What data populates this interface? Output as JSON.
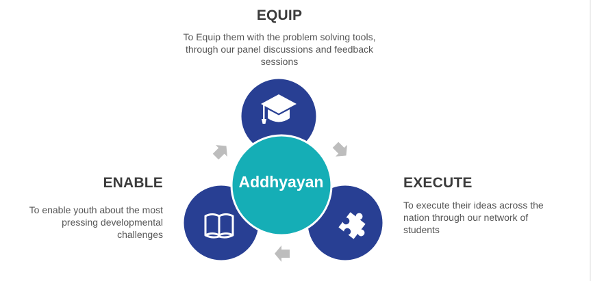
{
  "center": {
    "label": "Addhyayan"
  },
  "equip": {
    "heading": "EQUIP",
    "desc": "To Equip them with the problem solving tools, through our panel discussions and feedback sessions",
    "icon": "graduation-cap-icon"
  },
  "enable": {
    "heading": "ENABLE",
    "desc": "To enable youth about the most pressing developmental challenges",
    "icon": "open-book-icon"
  },
  "execute": {
    "heading": "EXECUTE",
    "desc": "To execute their ideas across the nation through our network of students",
    "icon": "puzzle-piece-icon"
  },
  "colors": {
    "outer_circle": "#283f93",
    "center_circle": "#15aeb6",
    "arrow": "#bdbdbd",
    "heading_text": "#3b3b3b",
    "desc_text": "#555555"
  }
}
